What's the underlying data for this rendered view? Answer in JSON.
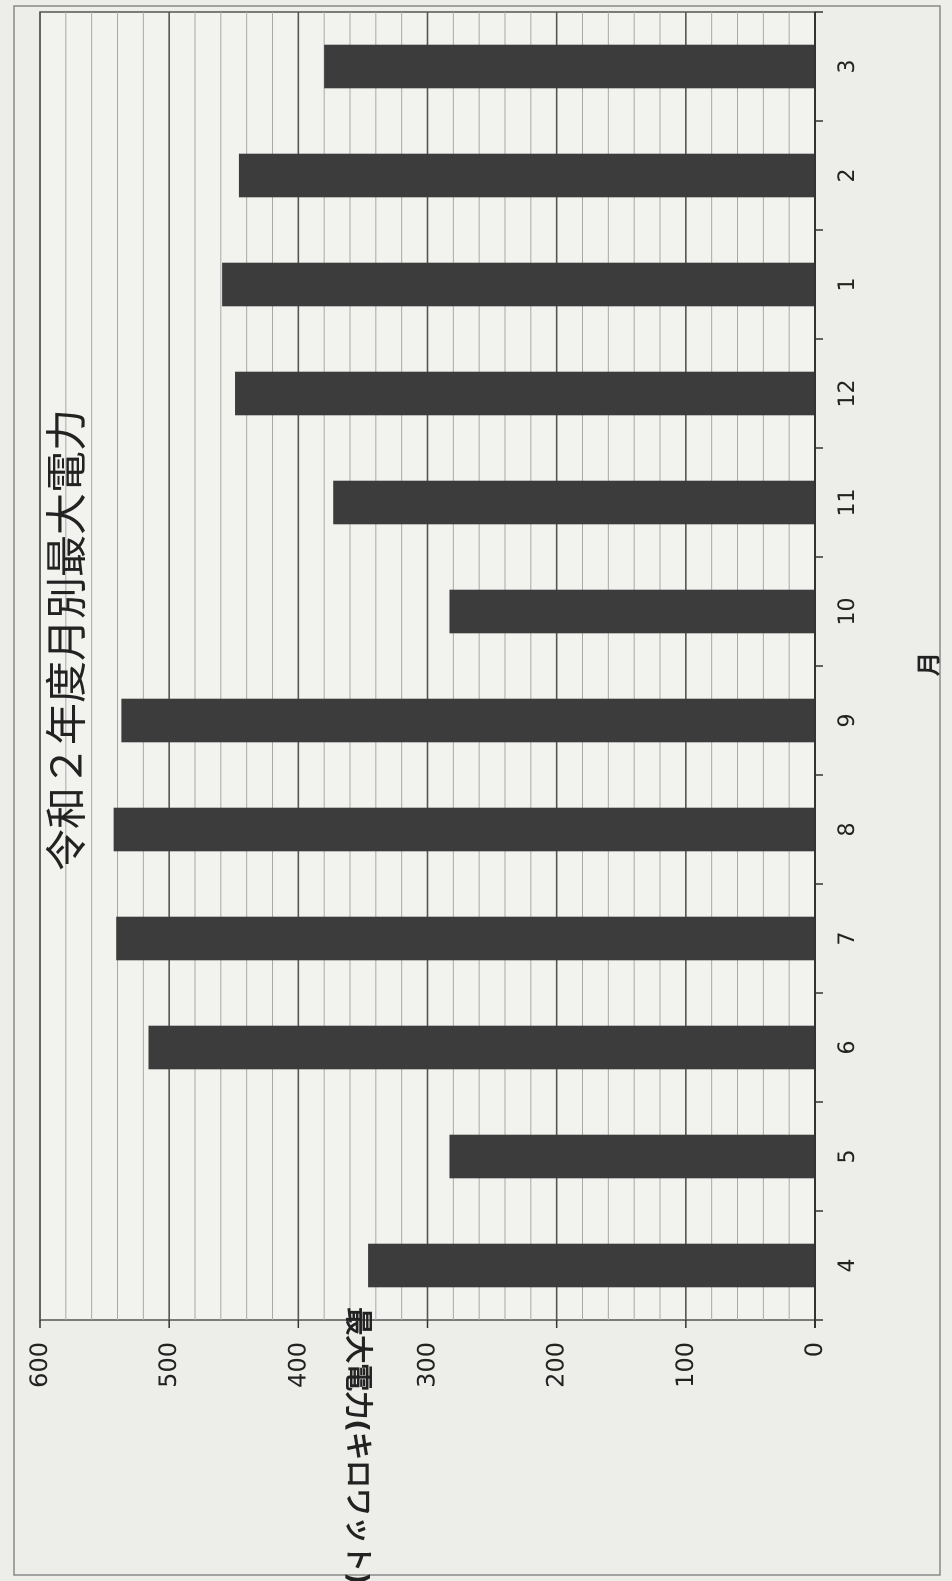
{
  "chart_data": {
    "type": "bar",
    "orientation": "horizontal (page rotated 90°)",
    "title": "令和２年度月別最大電力",
    "xlabel": "月",
    "ylabel": "最大電力(キロワット)",
    "categories": [
      "4",
      "5",
      "6",
      "7",
      "8",
      "9",
      "10",
      "11",
      "12",
      "1",
      "2",
      "3"
    ],
    "values": [
      346,
      283,
      516,
      541,
      543,
      537,
      283,
      373,
      449,
      459,
      446,
      380
    ],
    "ylim": [
      0,
      600
    ],
    "major_ticks": [
      0,
      100,
      200,
      300,
      400,
      500,
      600
    ],
    "minor_gridline_step": 20,
    "grid": true,
    "legend": "none",
    "colors": {
      "bar": "#3c3c3c",
      "major_grid": "#555555",
      "minor_grid": "#a8a8a8",
      "text": "#222222",
      "background": "#ededea"
    }
  }
}
